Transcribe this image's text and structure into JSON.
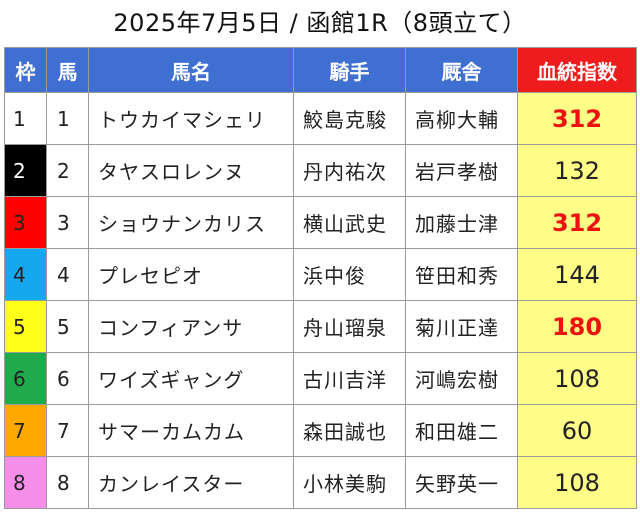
{
  "title": "2025年7月5日 / 函館1R（8頭立て）",
  "columns": {
    "waku": "枠",
    "umaban": "馬",
    "name": "馬名",
    "jockey": "騎手",
    "trainer": "厩舎",
    "score": "血統指数"
  },
  "colors": {
    "header_bg": "#3f6fd0",
    "score_header_bg": "#ee1c1c",
    "score_cell_bg": "#fdfd88",
    "high_score_text": "#ee1111"
  },
  "rows": [
    {
      "waku": "1",
      "umaban": "1",
      "name": "トウカイマシェリ",
      "jockey": "鮫島克駿",
      "trainer": "高柳大輔",
      "score": "312",
      "high": true,
      "waku_bg": "#ffffff",
      "waku_fg": "#222222"
    },
    {
      "waku": "2",
      "umaban": "2",
      "name": "タヤスロレンヌ",
      "jockey": "丹内祐次",
      "trainer": "岩戸孝樹",
      "score": "132",
      "high": false,
      "waku_bg": "#000000",
      "waku_fg": "#ffffff"
    },
    {
      "waku": "3",
      "umaban": "3",
      "name": "ショウナンカリス",
      "jockey": "横山武史",
      "trainer": "加藤士津",
      "score": "312",
      "high": true,
      "waku_bg": "#ff0000",
      "waku_fg": "#222222"
    },
    {
      "waku": "4",
      "umaban": "4",
      "name": "プレセピオ",
      "jockey": "浜中俊",
      "trainer": "笹田和秀",
      "score": "144",
      "high": false,
      "waku_bg": "#16a8ee",
      "waku_fg": "#222222"
    },
    {
      "waku": "5",
      "umaban": "5",
      "name": "コンフィアンサ",
      "jockey": "舟山瑠泉",
      "trainer": "菊川正達",
      "score": "180",
      "high": true,
      "waku_bg": "#ffff1a",
      "waku_fg": "#222222"
    },
    {
      "waku": "6",
      "umaban": "6",
      "name": "ワイズギャング",
      "jockey": "古川吉洋",
      "trainer": "河嶋宏樹",
      "score": "108",
      "high": false,
      "waku_bg": "#1fab4c",
      "waku_fg": "#222222"
    },
    {
      "waku": "7",
      "umaban": "7",
      "name": "サマーカムカム",
      "jockey": "森田誠也",
      "trainer": "和田雄二",
      "score": "60",
      "high": false,
      "waku_bg": "#ffa800",
      "waku_fg": "#222222"
    },
    {
      "waku": "8",
      "umaban": "8",
      "name": "カンレイスター",
      "jockey": "小林美駒",
      "trainer": "矢野英一",
      "score": "108",
      "high": false,
      "waku_bg": "#f48ee8",
      "waku_fg": "#222222"
    }
  ]
}
